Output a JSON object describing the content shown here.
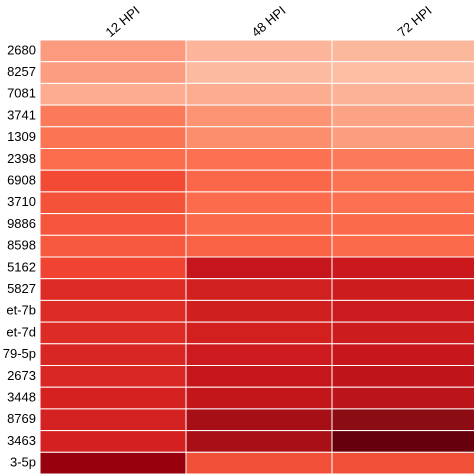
{
  "chart_data": {
    "type": "heatmap",
    "columns": [
      "12 HPI",
      "48 HPI",
      "72 HPI"
    ],
    "rows": [
      "2680",
      "8257",
      "7081",
      "3741",
      "1309",
      "2398",
      "6908",
      "3710",
      "9886",
      "8598",
      "5162",
      "5827",
      "et-7b",
      "et-7d",
      "79-5p",
      "2673",
      "3448",
      "8769",
      "3463",
      "3-5p"
    ],
    "colors": [
      [
        "#fb9a7e",
        "#fcb49a",
        "#fcb89d"
      ],
      [
        "#fc9c80",
        "#fcbba1",
        "#fcbda3"
      ],
      [
        "#fcad91",
        "#fcad90",
        "#fcb296"
      ],
      [
        "#fb7a5a",
        "#fc9373",
        "#fca386"
      ],
      [
        "#fb7555",
        "#fc8d6d",
        "#fc9d80"
      ],
      [
        "#fb6d4d",
        "#fb7151",
        "#fb7a5a"
      ],
      [
        "#f24a35",
        "#fa6849",
        "#fb7353"
      ],
      [
        "#f5523a",
        "#fb6b4c",
        "#fb7050"
      ],
      [
        "#f5553c",
        "#fb6a4a",
        "#fb6b4b"
      ],
      [
        "#f65940",
        "#f96245",
        "#fb6a4a"
      ],
      [
        "#f14331",
        "#c4161c",
        "#cb181d"
      ],
      [
        "#dc2a25",
        "#d0201f",
        "#cc1c1e"
      ],
      [
        "#dd2b25",
        "#cf1f1f",
        "#cb1b1e"
      ],
      [
        "#dd2c25",
        "#d2201f",
        "#cd1c1e"
      ],
      [
        "#d82625",
        "#cc1a1e",
        "#c8171c"
      ],
      [
        "#d92725",
        "#c5161c",
        "#c0141b"
      ],
      [
        "#d52221",
        "#c3161b",
        "#bb141a"
      ],
      [
        "#d42121",
        "#a50f15",
        "#8c0c13"
      ],
      [
        "#d42020",
        "#a81016",
        "#67000d"
      ],
      [
        "#99000d",
        "#f05038",
        "#f05038"
      ]
    ]
  }
}
